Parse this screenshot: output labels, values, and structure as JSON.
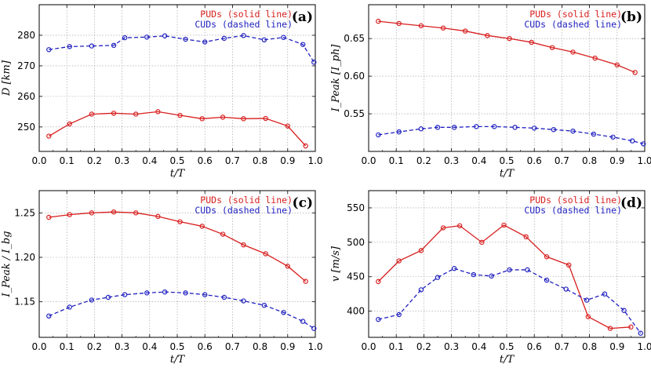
{
  "colors": {
    "pud": "#d81e1e",
    "cud": "#2020c0"
  },
  "chart_data": [
    {
      "type": "line",
      "tag": "(a)",
      "xlabel": "t/T",
      "ylabel": "D [km]",
      "xlim": [
        0.0,
        1.0
      ],
      "ylim": [
        242,
        290
      ],
      "xticks": [
        0.0,
        0.1,
        0.2,
        0.3,
        0.4,
        0.5,
        0.6,
        0.7,
        0.8,
        0.9,
        1.0
      ],
      "xtick_labels": [
        "0.0",
        "0.1",
        "0.2",
        "0.3",
        "0.4",
        "0.5",
        "0.6",
        "0.7",
        "0.8",
        "0.9",
        "1.0"
      ],
      "yticks": [
        250,
        260,
        270,
        280
      ],
      "ytick_labels": [
        "250",
        "260",
        "270",
        "280"
      ],
      "legend": [
        "PUDs (solid line)",
        "CUDs (dashed line)"
      ],
      "series": [
        {
          "name": "PUDs",
          "style": "solid",
          "color": "#d81e1e",
          "x": [
            0.035,
            0.11,
            0.19,
            0.27,
            0.35,
            0.43,
            0.51,
            0.59,
            0.665,
            0.74,
            0.82,
            0.9,
            0.965
          ],
          "y": [
            247.0,
            251.0,
            254.2,
            254.5,
            254.2,
            255.0,
            253.8,
            252.7,
            253.2,
            252.7,
            252.8,
            250.3,
            243.8
          ]
        },
        {
          "name": "CUDs",
          "style": "dashed",
          "color": "#2020c0",
          "x": [
            0.035,
            0.11,
            0.19,
            0.27,
            0.31,
            0.39,
            0.455,
            0.53,
            0.6,
            0.67,
            0.74,
            0.815,
            0.885,
            0.955,
            0.995
          ],
          "y": [
            275.3,
            276.3,
            276.5,
            276.7,
            279.2,
            279.4,
            279.8,
            278.7,
            277.8,
            279.0,
            279.9,
            278.5,
            279.3,
            277.0,
            271.2
          ]
        }
      ]
    },
    {
      "type": "line",
      "tag": "(b)",
      "xlabel": "t/T",
      "ylabel": "I_Peak [I_ph]",
      "xlim": [
        0.0,
        1.0
      ],
      "ylim": [
        0.5,
        0.695
      ],
      "xticks": [
        0.0,
        0.1,
        0.2,
        0.3,
        0.4,
        0.5,
        0.6,
        0.7,
        0.8,
        0.9,
        1.0
      ],
      "xtick_labels": [
        "0.0",
        "0.1",
        "0.2",
        "0.3",
        "0.4",
        "0.5",
        "0.6",
        "0.7",
        "0.8",
        "0.9",
        "1.0"
      ],
      "yticks": [
        0.55,
        0.6,
        0.65
      ],
      "ytick_labels": [
        "0.55",
        "0.60",
        "0.65"
      ],
      "legend": [
        "PUDs (solid line)",
        "CUDs (dashed line)"
      ],
      "series": [
        {
          "name": "PUDs",
          "style": "solid",
          "color": "#d81e1e",
          "x": [
            0.035,
            0.11,
            0.19,
            0.27,
            0.35,
            0.43,
            0.51,
            0.59,
            0.665,
            0.74,
            0.82,
            0.9,
            0.965
          ],
          "y": [
            0.673,
            0.67,
            0.667,
            0.664,
            0.66,
            0.654,
            0.65,
            0.645,
            0.638,
            0.632,
            0.624,
            0.615,
            0.605
          ]
        },
        {
          "name": "CUDs",
          "style": "dashed",
          "color": "#2020c0",
          "x": [
            0.035,
            0.11,
            0.19,
            0.25,
            0.31,
            0.39,
            0.455,
            0.53,
            0.6,
            0.67,
            0.74,
            0.815,
            0.885,
            0.955,
            0.995
          ],
          "y": [
            0.522,
            0.526,
            0.53,
            0.532,
            0.532,
            0.533,
            0.533,
            0.532,
            0.531,
            0.529,
            0.527,
            0.523,
            0.519,
            0.514,
            0.51
          ]
        }
      ]
    },
    {
      "type": "line",
      "tag": "(c)",
      "xlabel": "t/T",
      "ylabel": "I_Peak / I_bg",
      "xlim": [
        0.0,
        1.0
      ],
      "ylim": [
        1.11,
        1.275
      ],
      "xticks": [
        0.0,
        0.1,
        0.2,
        0.3,
        0.4,
        0.5,
        0.6,
        0.7,
        0.8,
        0.9,
        1.0
      ],
      "xtick_labels": [
        "0.0",
        "0.1",
        "0.2",
        "0.3",
        "0.4",
        "0.5",
        "0.6",
        "0.7",
        "0.8",
        "0.9",
        "1.0"
      ],
      "yticks": [
        1.15,
        1.2,
        1.25
      ],
      "ytick_labels": [
        "1.15",
        "1.20",
        "1.25"
      ],
      "legend": [
        "PUDs (solid line)",
        "CUDs (dashed line)"
      ],
      "series": [
        {
          "name": "PUDs",
          "style": "solid",
          "color": "#d81e1e",
          "x": [
            0.035,
            0.11,
            0.19,
            0.27,
            0.35,
            0.43,
            0.51,
            0.59,
            0.665,
            0.74,
            0.82,
            0.9,
            0.965
          ],
          "y": [
            1.245,
            1.248,
            1.25,
            1.251,
            1.25,
            1.246,
            1.24,
            1.235,
            1.226,
            1.214,
            1.204,
            1.19,
            1.173
          ]
        },
        {
          "name": "CUDs",
          "style": "dashed",
          "color": "#2020c0",
          "x": [
            0.035,
            0.11,
            0.19,
            0.25,
            0.31,
            0.39,
            0.455,
            0.53,
            0.6,
            0.67,
            0.74,
            0.815,
            0.885,
            0.955,
            0.995
          ],
          "y": [
            1.134,
            1.144,
            1.152,
            1.155,
            1.158,
            1.16,
            1.161,
            1.16,
            1.158,
            1.155,
            1.151,
            1.146,
            1.138,
            1.128,
            1.12
          ]
        }
      ]
    },
    {
      "type": "line",
      "tag": "(d)",
      "xlabel": "t/T",
      "ylabel": "v [m/s]",
      "xlim": [
        0.0,
        1.0
      ],
      "ylim": [
        362,
        575
      ],
      "xticks": [
        0.0,
        0.1,
        0.2,
        0.3,
        0.4,
        0.5,
        0.6,
        0.7,
        0.8,
        0.9,
        1.0
      ],
      "xtick_labels": [
        "0.0",
        "0.1",
        "0.2",
        "0.3",
        "0.4",
        "0.5",
        "0.6",
        "0.7",
        "0.8",
        "0.9",
        "1.0"
      ],
      "yticks": [
        400,
        450,
        500,
        550
      ],
      "ytick_labels": [
        "400",
        "450",
        "500",
        "550"
      ],
      "legend": [
        "PUDs (solid line)",
        "CUDs (dashed line)"
      ],
      "series": [
        {
          "name": "PUDs",
          "style": "solid",
          "color": "#d81e1e",
          "x": [
            0.035,
            0.11,
            0.19,
            0.27,
            0.33,
            0.41,
            0.49,
            0.57,
            0.645,
            0.725,
            0.795,
            0.875,
            0.95
          ],
          "y": [
            443,
            473,
            488,
            521,
            524,
            500,
            525,
            508,
            479,
            467,
            392,
            375,
            377
          ]
        },
        {
          "name": "CUDs",
          "style": "dashed",
          "color": "#2020c0",
          "x": [
            0.035,
            0.11,
            0.19,
            0.25,
            0.31,
            0.38,
            0.445,
            0.51,
            0.575,
            0.645,
            0.715,
            0.79,
            0.855,
            0.925,
            0.985
          ],
          "y": [
            388,
            395,
            431,
            449,
            462,
            453,
            451,
            460,
            460,
            445,
            432,
            416,
            425,
            401,
            368
          ]
        }
      ]
    }
  ]
}
